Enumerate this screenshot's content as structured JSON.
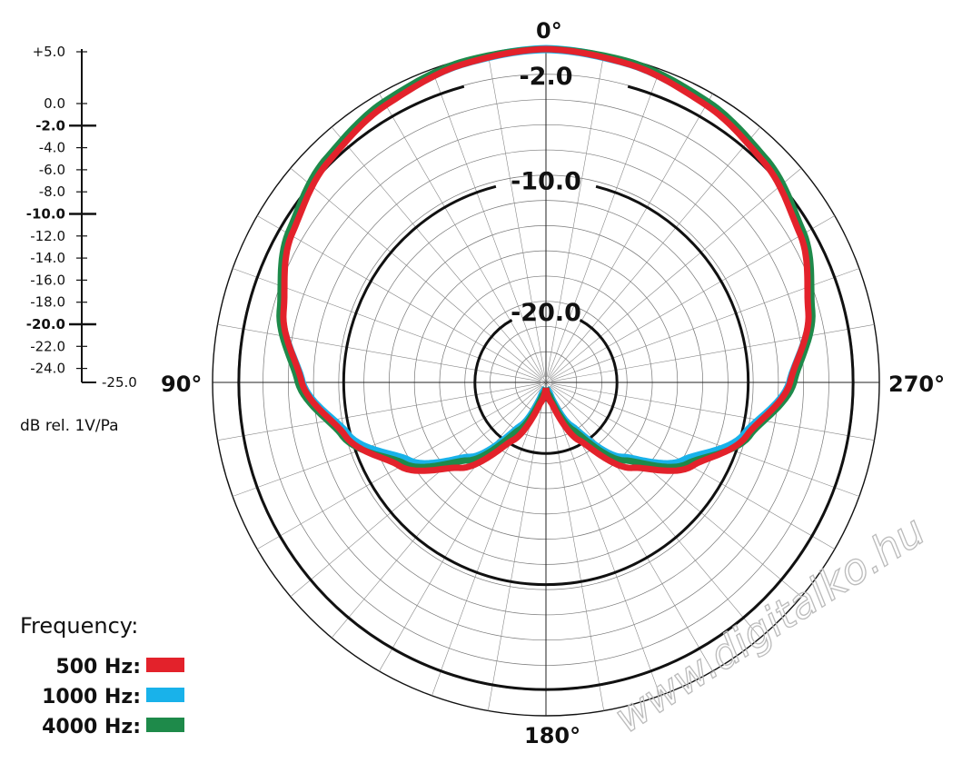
{
  "chart_data": {
    "type": "polar-line",
    "r_range_db": [
      -25,
      0
    ],
    "angle_labels": [
      "0°",
      "90°",
      "180°",
      "270°"
    ],
    "ring_labels": [
      "-2.0",
      "-10.0",
      "-20.0"
    ],
    "scale": {
      "ticks": [
        "+5.0",
        "0.0",
        "-2.0",
        "-4.0",
        "-6.0",
        "-8.0",
        "-10.0",
        "-12.0",
        "-14.0",
        "-16.0",
        "-18.0",
        "-20.0",
        "-22.0",
        "-24.0",
        "-25.0"
      ],
      "emphasized": [
        "-2.0",
        "-10.0",
        "-20.0"
      ],
      "unit": "dB rel. 1V/Pa"
    },
    "legend_title": "Frequency:",
    "series": [
      {
        "name": "1000 Hz:",
        "color": "#19b2ea",
        "angles_deg": [
          0,
          15,
          30,
          45,
          60,
          75,
          90,
          105,
          120,
          135,
          150,
          165,
          180
        ],
        "values_db": [
          0,
          -0.3,
          -0.9,
          -1.7,
          -2.9,
          -4.6,
          -6.8,
          -9.8,
          -13.4,
          -17.3,
          -21.5,
          -24.6,
          -25
        ]
      },
      {
        "name": "4000 Hz:",
        "color": "#1e8a4a",
        "angles_deg": [
          0,
          15,
          30,
          45,
          60,
          75,
          90,
          105,
          120,
          135,
          150,
          165,
          180
        ],
        "values_db": [
          0,
          -0.15,
          -0.7,
          -1.5,
          -2.7,
          -4.4,
          -6.5,
          -9.4,
          -13.0,
          -17.0,
          -21.2,
          -24.4,
          -25
        ]
      },
      {
        "name": "500 Hz:",
        "color": "#e3222b",
        "angles_deg": [
          0,
          15,
          30,
          45,
          60,
          75,
          90,
          105,
          120,
          135,
          150,
          165,
          180
        ],
        "values_db": [
          0,
          -0.35,
          -1.0,
          -1.8,
          -3.0,
          -4.7,
          -6.8,
          -9.6,
          -12.6,
          -16.2,
          -20.3,
          -23.8,
          -25
        ]
      }
    ],
    "legend_order": [
      "500 Hz:",
      "1000 Hz:",
      "4000 Hz:"
    ]
  },
  "watermark": "www.digitalko.hu"
}
